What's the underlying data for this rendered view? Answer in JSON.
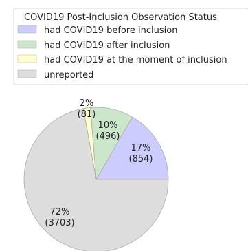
{
  "chart_data": {
    "type": "pie",
    "title": "",
    "legend": {
      "title": "COVID19 Post-Inclusion Observation Status",
      "placement": "top-left"
    },
    "slices": [
      {
        "label": "had COVID19 before inclusion",
        "percent_label": "17%",
        "count_label": "(854)",
        "value": 854,
        "color": "#ccccff"
      },
      {
        "label": "had COVID19 after inclusion",
        "percent_label": "10%",
        "count_label": "(496)",
        "value": 496,
        "color": "#cce6cc"
      },
      {
        "label": "had COVID19 at the moment of inclusion",
        "percent_label": "2%",
        "count_label": "(81)",
        "value": 81,
        "color": "#ffffcc"
      },
      {
        "label": "unreported",
        "percent_label": "72%",
        "count_label": "(3703)",
        "value": 3703,
        "color": "#dddddd"
      }
    ],
    "start_angle_deg": 0,
    "direction": "counterclockwise",
    "slice_edge_color": "#aaaaaa"
  }
}
